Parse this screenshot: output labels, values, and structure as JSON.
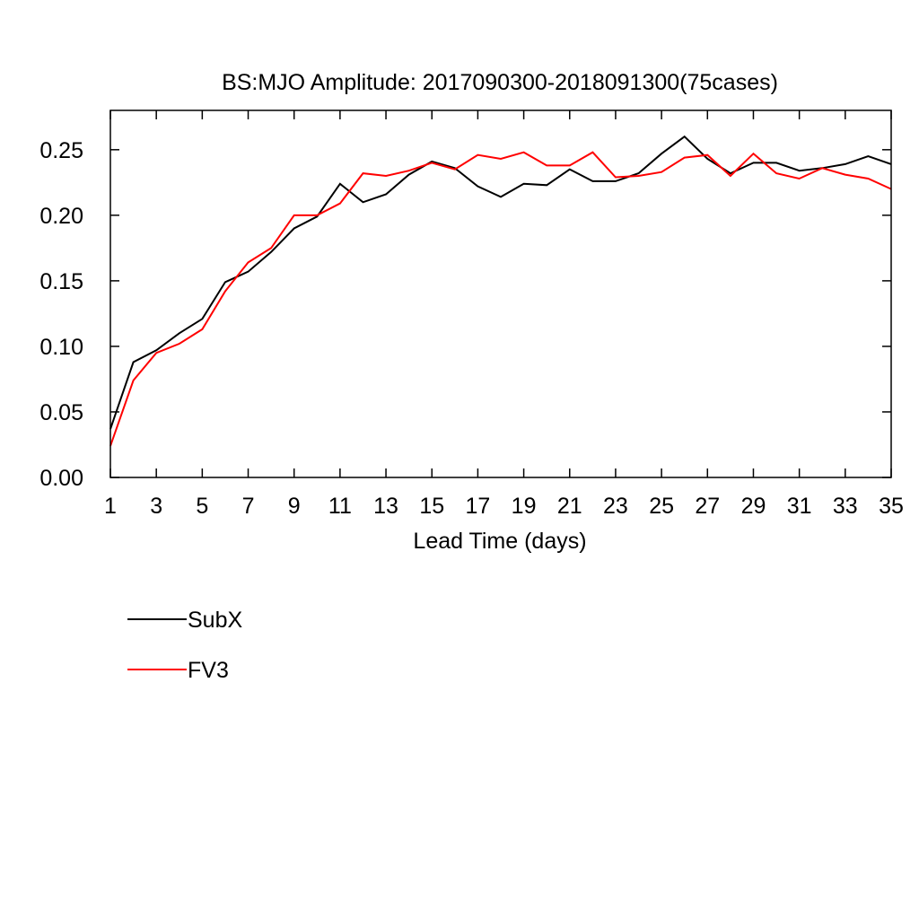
{
  "chart_data": {
    "type": "line",
    "title": "BS:MJO Amplitude: 2017090300-2018091300(75cases)",
    "xlabel": "Lead Time (days)",
    "ylabel": "",
    "xlim": [
      1,
      35
    ],
    "ylim": [
      0,
      0.28
    ],
    "x_ticks": [
      "1",
      "3",
      "5",
      "7",
      "9",
      "11",
      "13",
      "15",
      "17",
      "19",
      "21",
      "23",
      "25",
      "27",
      "29",
      "31",
      "33",
      "35"
    ],
    "y_ticks": [
      "0.00",
      "0.05",
      "0.10",
      "0.15",
      "0.20",
      "0.25"
    ],
    "legend_position": "bottom-left",
    "grid": false,
    "x": [
      1,
      2,
      3,
      4,
      5,
      6,
      7,
      8,
      9,
      10,
      11,
      12,
      13,
      14,
      15,
      16,
      17,
      18,
      19,
      20,
      21,
      22,
      23,
      24,
      25,
      26,
      27,
      28,
      29,
      30,
      31,
      32,
      33,
      34,
      35
    ],
    "series": [
      {
        "name": "SubX",
        "color": "#000000",
        "values": [
          0.037,
          0.088,
          0.097,
          0.11,
          0.121,
          0.149,
          0.157,
          0.172,
          0.19,
          0.199,
          0.224,
          0.21,
          0.216,
          0.231,
          0.241,
          0.236,
          0.222,
          0.214,
          0.224,
          0.223,
          0.235,
          0.226,
          0.226,
          0.232,
          0.247,
          0.26,
          0.243,
          0.232,
          0.24,
          0.24,
          0.234,
          0.236,
          0.239,
          0.245,
          0.239
        ]
      },
      {
        "name": "FV3",
        "color": "#ff0000",
        "values": [
          0.024,
          0.074,
          0.095,
          0.102,
          0.113,
          0.142,
          0.164,
          0.175,
          0.2,
          0.2,
          0.209,
          0.232,
          0.23,
          0.234,
          0.24,
          0.235,
          0.246,
          0.243,
          0.248,
          0.238,
          0.238,
          0.248,
          0.229,
          0.23,
          0.233,
          0.244,
          0.246,
          0.23,
          0.247,
          0.232,
          0.228,
          0.236,
          0.231,
          0.228,
          0.22
        ]
      }
    ]
  }
}
